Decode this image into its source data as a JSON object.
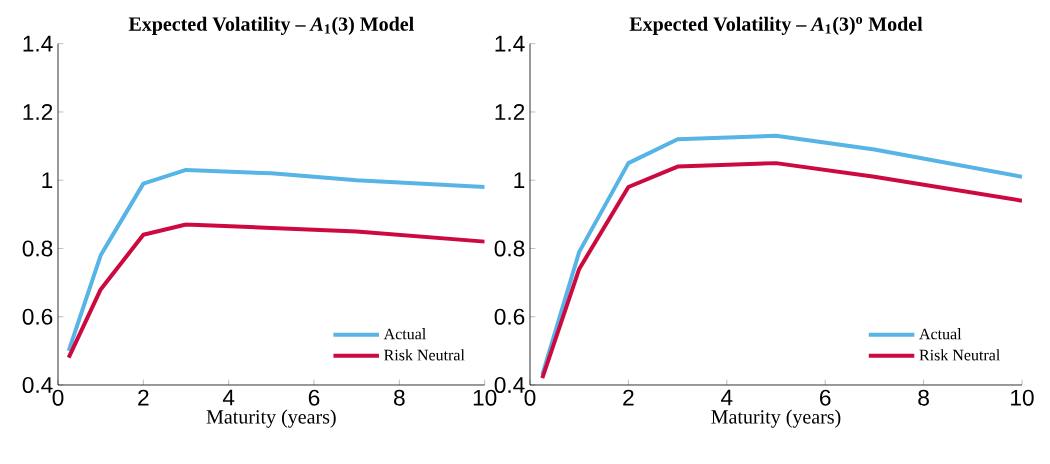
{
  "chart_data": [
    {
      "type": "line",
      "title": "**Expected Volatility – *A*$_{1}$(3) Model**",
      "xlabel": "Maturity (years)",
      "x": [
        0.25,
        1,
        2,
        3,
        5,
        7,
        10
      ],
      "series": [
        {
          "name": "Actual",
          "color": "#56b4e6",
          "values": [
            0.5,
            0.78,
            0.99,
            1.03,
            1.02,
            1.0,
            0.98
          ]
        },
        {
          "name": "Risk Neutral",
          "color": "#cc0a3f",
          "values": [
            0.48,
            0.68,
            0.84,
            0.87,
            0.86,
            0.85,
            0.82
          ]
        }
      ],
      "xlim": [
        0,
        10
      ],
      "ylim": [
        0.4,
        1.4
      ],
      "xticks": [
        0,
        2,
        4,
        6,
        8,
        10
      ],
      "yticks": [
        0.4,
        0.6,
        0.8,
        1,
        1.2,
        1.4
      ],
      "legend": "bottom right",
      "grid": false,
      "marker": "none",
      "line_style": "solid"
    },
    {
      "type": "line",
      "title": "**Expected Volatility – *A*$_{1}$(3)$^{o}$ Model**",
      "xlabel": "Maturity (years)",
      "x": [
        0.25,
        1,
        2,
        3,
        5,
        7,
        10
      ],
      "series": [
        {
          "name": "Actual",
          "color": "#56b4e6",
          "values": [
            0.43,
            0.79,
            1.05,
            1.12,
            1.13,
            1.09,
            1.01
          ]
        },
        {
          "name": "Risk Neutral",
          "color": "#cc0a3f",
          "values": [
            0.42,
            0.74,
            0.98,
            1.04,
            1.05,
            1.01,
            0.94
          ]
        }
      ],
      "xlim": [
        0,
        10
      ],
      "ylim": [
        0.4,
        1.4
      ],
      "xticks": [
        0,
        2,
        4,
        6,
        8,
        10
      ],
      "yticks": [
        0.4,
        0.6,
        0.8,
        1,
        1.2,
        1.4
      ],
      "legend": "bottom right",
      "grid": false,
      "marker": "none",
      "line_style": "solid"
    }
  ]
}
